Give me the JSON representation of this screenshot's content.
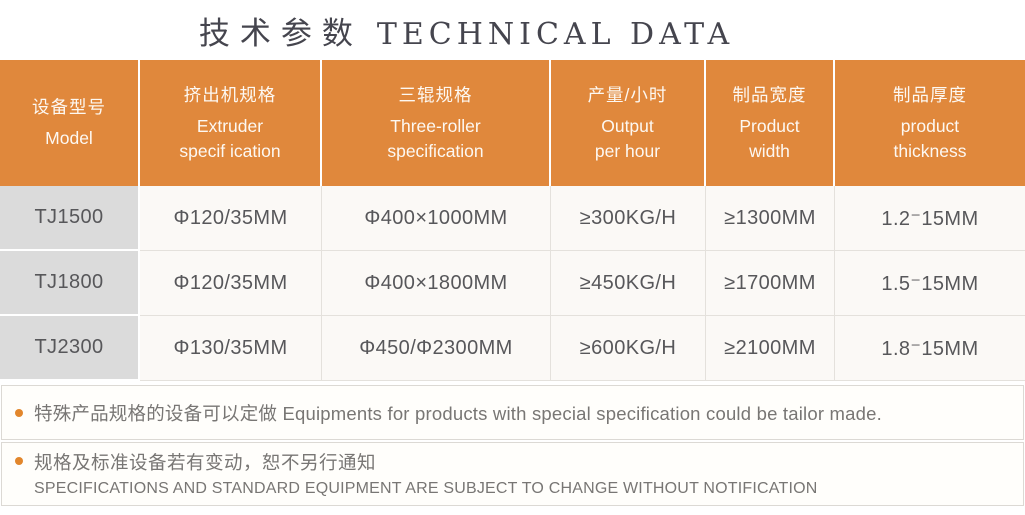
{
  "title": {
    "zh": "技术参数",
    "en": "TECHNICAL DATA"
  },
  "table": {
    "columns": [
      {
        "zh": "设备型号",
        "en": "Model"
      },
      {
        "zh": "挤出机规格",
        "en": "Extruder\nspecif ication"
      },
      {
        "zh": "三辊规格",
        "en": "Three-roller\nspecification"
      },
      {
        "zh": "产量/小时",
        "en": "Output\nper hour"
      },
      {
        "zh": "制品宽度",
        "en": "Product\nwidth"
      },
      {
        "zh": "制品厚度",
        "en": "product\nthickness"
      }
    ],
    "rows": [
      {
        "cells": [
          "TJ1500",
          "Φ120/35MM",
          "Φ400×1000MM",
          "≥300KG/H",
          "≥1300MM",
          "1.2⁻15MM"
        ]
      },
      {
        "cells": [
          "TJ1800",
          "Φ120/35MM",
          "Φ400×1800MM",
          "≥450KG/H",
          "≥1700MM",
          "1.5⁻15MM"
        ]
      },
      {
        "cells": [
          "TJ2300",
          "Φ130/35MM",
          "Φ450/Φ2300MM",
          "≥600KG/H",
          "≥2100MM",
          "1.8⁻15MM"
        ]
      }
    ]
  },
  "notes": [
    {
      "text": "特殊产品规格的设备可以定做 Equipments for products with special specification could be tailor made."
    },
    {
      "zh": "规格及标准设备若有变动，恕不另行通知",
      "en": "SPECIFICATIONS AND STANDARD EQUIPMENT ARE SUBJECT TO CHANGE WITHOUT NOTIFICATION"
    }
  ],
  "colors": {
    "header_bg": "#E0883C",
    "model_cell_bg": "#DBDBDB",
    "body_cell_bg": "#FBF9F6",
    "bullet": "#E2862C",
    "title_text": "#45454E",
    "body_text": "#57575A",
    "note_text": "#787674"
  }
}
